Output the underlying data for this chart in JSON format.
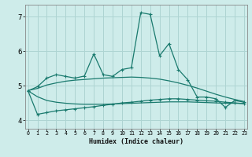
{
  "xlabel": "Humidex (Indice chaleur)",
  "background_color": "#ceecea",
  "grid_color": "#aed4d2",
  "line_color": "#1a7a6e",
  "spine_color": "#888888",
  "x_values": [
    0,
    1,
    2,
    3,
    4,
    5,
    6,
    7,
    8,
    9,
    10,
    11,
    12,
    13,
    14,
    15,
    16,
    17,
    18,
    19,
    20,
    21,
    22,
    23
  ],
  "series1": [
    4.85,
    4.97,
    5.22,
    5.32,
    5.27,
    5.22,
    5.28,
    5.92,
    5.32,
    5.27,
    5.47,
    5.52,
    7.12,
    7.07,
    5.87,
    6.22,
    5.47,
    5.17,
    4.67,
    4.67,
    4.62,
    4.37,
    4.57,
    4.52
  ],
  "series2": [
    4.85,
    4.17,
    4.22,
    4.27,
    4.3,
    4.33,
    4.36,
    4.39,
    4.43,
    4.46,
    4.5,
    4.52,
    4.55,
    4.58,
    4.6,
    4.62,
    4.62,
    4.6,
    4.58,
    4.56,
    4.55,
    4.52,
    4.5,
    4.48
  ],
  "series3_fit": [
    4.86,
    4.92,
    5.02,
    5.08,
    5.13,
    5.16,
    5.18,
    5.2,
    5.22,
    5.23,
    5.24,
    5.25,
    5.24,
    5.22,
    5.19,
    5.14,
    5.08,
    5.01,
    4.93,
    4.84,
    4.75,
    4.67,
    4.6,
    4.54
  ],
  "series4_fit": [
    4.85,
    4.68,
    4.57,
    4.52,
    4.49,
    4.47,
    4.46,
    4.46,
    4.46,
    4.47,
    4.48,
    4.49,
    4.5,
    4.51,
    4.52,
    4.53,
    4.53,
    4.53,
    4.52,
    4.51,
    4.5,
    4.49,
    4.49,
    4.48
  ],
  "ylim": [
    3.75,
    7.35
  ],
  "yticks": [
    4,
    5,
    6,
    7
  ],
  "xlim": [
    -0.3,
    23.3
  ],
  "xlabel_fontsize": 6.0,
  "xtick_fontsize": 4.8,
  "ytick_fontsize": 6.5
}
